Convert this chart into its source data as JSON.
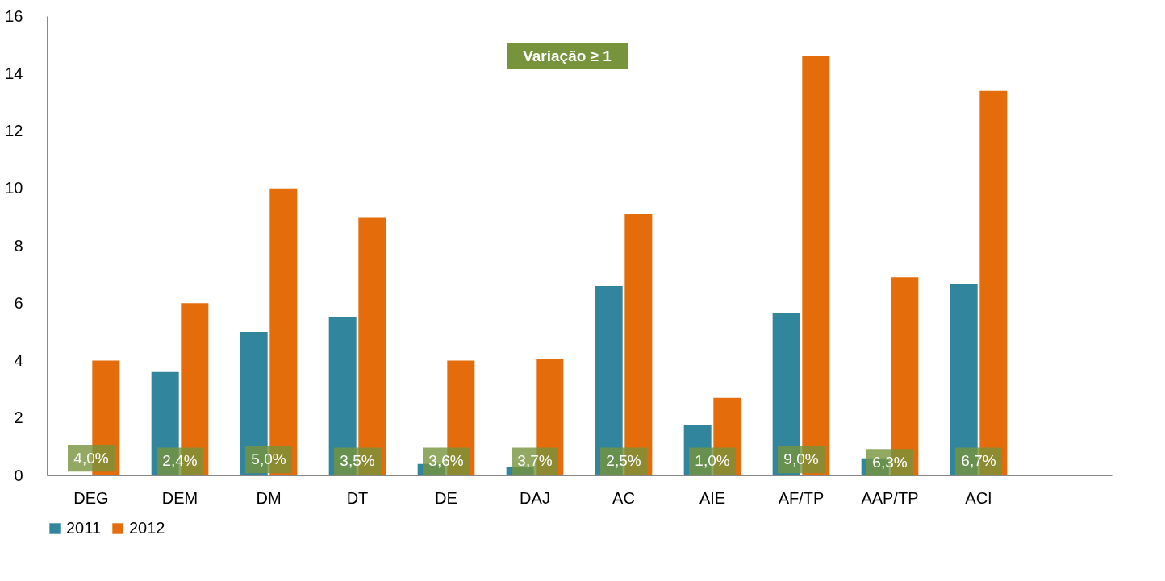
{
  "chart_data": {
    "type": "bar",
    "categories": [
      "DEG",
      "DEM",
      "DM",
      "DT",
      "DE",
      "DAJ",
      "AC",
      "AIE",
      "AF/TP",
      "AAP/TP",
      "ACI",
      null
    ],
    "series": [
      {
        "name": "2011",
        "color": "#31859c",
        "values": [
          null,
          3.6,
          5.0,
          5.5,
          0.4,
          0.3,
          6.6,
          1.75,
          5.65,
          0.6,
          6.65,
          null
        ]
      },
      {
        "name": "2012",
        "color": "#e46c0a",
        "values": [
          4.0,
          6.0,
          10.0,
          9.0,
          4.0,
          4.05,
          9.1,
          2.7,
          14.6,
          6.9,
          13.4,
          null
        ]
      }
    ],
    "ylim": [
      0,
      16
    ],
    "yticks": [
      0,
      2,
      4,
      6,
      8,
      10,
      12,
      14,
      16
    ],
    "grid": false,
    "legend": "bottom",
    "annotations": [
      "Variação  ≥ 1",
      {
        "text": "4,0%",
        "x": "DEG",
        "y": 0.6
      },
      {
        "text": "2,4%",
        "x": "DEM",
        "y": 0.5
      },
      {
        "text": "5,0%",
        "x": "DM",
        "y": 0.55
      },
      {
        "text": "3,5%",
        "x": "DT",
        "y": 0.5
      },
      {
        "text": "3,6%",
        "x": "DE",
        "y": 0.5
      },
      {
        "text": "3,7%",
        "x": "DAJ",
        "y": 0.5
      },
      {
        "text": "2,5%",
        "x": "AC",
        "y": 0.5
      },
      {
        "text": "1,0%",
        "x": "AIE",
        "y": 0.5
      },
      {
        "text": "9,0%",
        "x": "AF/TP",
        "y": 0.55
      },
      {
        "text": "6,3%",
        "x": "AAP/TP",
        "y": 0.45
      },
      {
        "text": "6,7%",
        "x": "ACI",
        "y": 0.5
      }
    ]
  }
}
